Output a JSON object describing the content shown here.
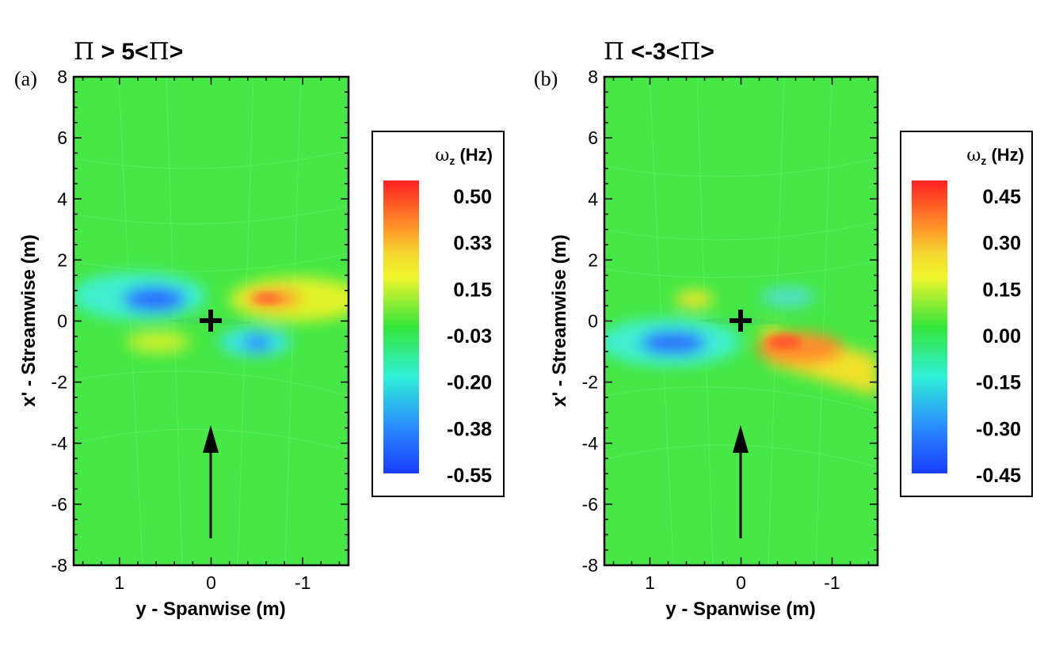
{
  "chart_data": [
    {
      "type": "heatmap",
      "panel_label": "(a)",
      "title": "Π > 5<Π>",
      "title_symbol": "Π",
      "title_rest": " > 5<",
      "title_symbol2": "Π",
      "title_end": ">",
      "xlabel": "y - Spanwise (m)",
      "ylabel": "x' - Streamwise (m)",
      "xlim": [
        1.5,
        -1.5
      ],
      "ylim": [
        -8,
        8
      ],
      "xticks": [
        "1",
        "0",
        "-1"
      ],
      "xtick_values": [
        1,
        0,
        -1
      ],
      "yticks": [
        "-8",
        "-6",
        "-4",
        "-2",
        "0",
        "2",
        "4",
        "6",
        "8"
      ],
      "ytick_values": [
        -8,
        -6,
        -4,
        -2,
        0,
        2,
        4,
        6,
        8
      ],
      "colorbar": {
        "title": "ω",
        "title_sub": "z",
        "title_unit": " (Hz)",
        "labels": [
          "0.50",
          "0.33",
          "0.15",
          "-0.03",
          "-0.20",
          "-0.38",
          "-0.55"
        ],
        "values": [
          0.5,
          0.33,
          0.15,
          -0.03,
          -0.2,
          -0.38,
          -0.55
        ]
      },
      "features": [
        {
          "y": 0.6,
          "x": 0.7,
          "omega": -0.38,
          "note": "blue patch"
        },
        {
          "y": -0.7,
          "x": 0.75,
          "omega": 0.38,
          "note": "orange patch"
        },
        {
          "y": 0.6,
          "x": -0.8,
          "omega": 0.1,
          "note": "yellow patch"
        },
        {
          "y": -0.5,
          "x": -0.7,
          "omega": -0.35,
          "note": "blue patch"
        }
      ],
      "markers": {
        "cross": {
          "y": 0,
          "x": 0
        },
        "arrow": {
          "y": 0,
          "x_from": -7.2,
          "x_to": -3.5
        }
      }
    },
    {
      "type": "heatmap",
      "panel_label": "(b)",
      "title": "Π <-3<Π>",
      "title_symbol": "Π",
      "title_rest": " <-3<",
      "title_symbol2": "Π",
      "title_end": ">",
      "xlabel": "y - Spanwise (m)",
      "ylabel": "x' - Streamwise (m)",
      "xlim": [
        1.5,
        -1.5
      ],
      "ylim": [
        -8,
        8
      ],
      "xticks": [
        "1",
        "0",
        "-1"
      ],
      "xtick_values": [
        1,
        0,
        -1
      ],
      "yticks": [
        "-8",
        "-6",
        "-4",
        "-2",
        "0",
        "2",
        "4",
        "6",
        "8"
      ],
      "ytick_values": [
        -8,
        -6,
        -4,
        -2,
        0,
        2,
        4,
        6,
        8
      ],
      "colorbar": {
        "title": "ω",
        "title_sub": "z",
        "title_unit": " (Hz)",
        "labels": [
          "0.45",
          "0.30",
          "0.15",
          "0.00",
          "-0.15",
          "-0.30",
          "-0.45"
        ],
        "values": [
          0.45,
          0.3,
          0.15,
          0.0,
          -0.15,
          -0.3,
          -0.45
        ]
      },
      "features": [
        {
          "y": 0.8,
          "x": -0.7,
          "omega": -0.32,
          "note": "blue patch"
        },
        {
          "y": 0.5,
          "x": 0.6,
          "omega": 0.2,
          "note": "yellow spot"
        },
        {
          "y": -0.45,
          "x": 0.7,
          "omega": -0.12,
          "note": "cyan spot"
        },
        {
          "y": -0.6,
          "x": -0.7,
          "omega": 0.38,
          "note": "orange-red patch"
        },
        {
          "y": -1.2,
          "x": -1.6,
          "omega": 0.28,
          "note": "orange tail"
        }
      ],
      "markers": {
        "cross": {
          "y": 0,
          "x": 0
        },
        "arrow": {
          "y": 0,
          "x_from": -7.2,
          "x_to": -3.5
        }
      }
    }
  ],
  "colors": {
    "background_field": "#44e844",
    "blue": "#1f5dff",
    "cyan": "#2ff0f0",
    "yellow": "#f2f22a",
    "orange": "#ffa024",
    "red": "#ff2b2b"
  }
}
